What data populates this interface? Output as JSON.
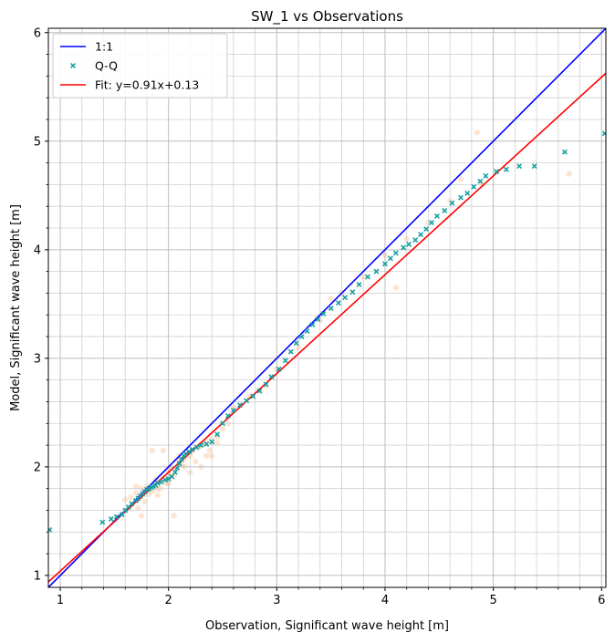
{
  "chart_data": {
    "type": "scatter",
    "title": "SW_1 vs Observations",
    "xlabel": "Observation, Significant wave height [m]",
    "ylabel": "Model, Significant wave height [m]",
    "xlim": [
      0.89,
      6.04
    ],
    "ylim": [
      0.89,
      6.04
    ],
    "x_ticks": [
      1,
      2,
      3,
      4,
      5,
      6
    ],
    "y_ticks": [
      1,
      2,
      3,
      4,
      5,
      6
    ],
    "x_tick_labels": [
      "1",
      "2",
      "3",
      "4",
      "5",
      "6"
    ],
    "y_tick_labels": [
      "1",
      "2",
      "3",
      "4",
      "5",
      "6"
    ],
    "minor_tick_step": 0.2,
    "grid": true,
    "legend_position": "top-left",
    "legend": [
      {
        "label": "1:1",
        "color": "#0000ff",
        "kind": "line"
      },
      {
        "label": "Q-Q",
        "color": "#17a0a0",
        "kind": "marker"
      },
      {
        "label": "Fit: y=0.91x+0.13",
        "color": "#ff0000",
        "kind": "line"
      }
    ],
    "one_to_one_line": {
      "color": "#0000ff"
    },
    "fit_line": {
      "slope": 0.91,
      "intercept": 0.13,
      "color": "#ff0000"
    },
    "qq_series": {
      "color": "#17a0a0",
      "x": [
        0.9,
        1.39,
        1.47,
        1.52,
        1.57,
        1.6,
        1.63,
        1.66,
        1.7,
        1.72,
        1.74,
        1.76,
        1.78,
        1.8,
        1.82,
        1.84,
        1.86,
        1.88,
        1.9,
        1.93,
        1.97,
        2.0,
        2.03,
        2.06,
        2.08,
        2.1,
        2.12,
        2.14,
        2.16,
        2.19,
        2.22,
        2.26,
        2.3,
        2.35,
        2.4,
        2.45,
        2.5,
        2.55,
        2.6,
        2.66,
        2.72,
        2.78,
        2.84,
        2.9,
        2.95,
        3.02,
        3.08,
        3.13,
        3.18,
        3.23,
        3.28,
        3.33,
        3.38,
        3.43,
        3.5,
        3.57,
        3.63,
        3.7,
        3.76,
        3.84,
        3.92,
        4.0,
        4.05,
        4.1,
        4.17,
        4.22,
        4.28,
        4.33,
        4.38,
        4.43,
        4.48,
        4.55,
        4.62,
        4.7,
        4.76,
        4.82,
        4.88,
        4.93,
        5.03,
        5.12,
        5.24,
        5.38,
        5.66,
        6.03
      ],
      "y": [
        1.42,
        1.49,
        1.52,
        1.54,
        1.56,
        1.6,
        1.63,
        1.66,
        1.69,
        1.71,
        1.73,
        1.75,
        1.77,
        1.79,
        1.8,
        1.81,
        1.82,
        1.83,
        1.85,
        1.86,
        1.88,
        1.89,
        1.91,
        1.95,
        1.99,
        2.03,
        2.07,
        2.1,
        2.12,
        2.14,
        2.16,
        2.18,
        2.2,
        2.21,
        2.23,
        2.3,
        2.4,
        2.47,
        2.52,
        2.57,
        2.61,
        2.65,
        2.7,
        2.76,
        2.83,
        2.9,
        2.98,
        3.06,
        3.14,
        3.2,
        3.25,
        3.31,
        3.36,
        3.41,
        3.46,
        3.51,
        3.56,
        3.61,
        3.68,
        3.75,
        3.8,
        3.87,
        3.92,
        3.97,
        4.02,
        4.05,
        4.09,
        4.14,
        4.19,
        4.25,
        4.31,
        4.36,
        4.43,
        4.48,
        4.52,
        4.58,
        4.63,
        4.68,
        4.72,
        4.74,
        4.77,
        4.77,
        4.9,
        5.07
      ]
    },
    "density_points": {
      "color": "#f4a261",
      "x": [
        1.65,
        1.7,
        1.72,
        1.75,
        1.78,
        1.8,
        1.82,
        1.85,
        1.88,
        1.9,
        1.92,
        1.95,
        1.98,
        2.0,
        2.02,
        2.05,
        2.08,
        2.1,
        2.12,
        2.15,
        2.18,
        2.2,
        2.22,
        2.25,
        2.28,
        2.3,
        2.35,
        2.38,
        2.4,
        2.45,
        2.5,
        1.75,
        1.85,
        2.05,
        2.1,
        1.95,
        2.3,
        2.45,
        2.6,
        2.75,
        2.85,
        3.0,
        3.2,
        3.4,
        3.6,
        3.8,
        4.0,
        4.2,
        4.4,
        4.6,
        4.85,
        4.9,
        5.7,
        1.7,
        2.0,
        2.2,
        2.4,
        2.9,
        3.5,
        4.1,
        4.7,
        1.6,
        1.9,
        2.15,
        2.35,
        2.55
      ],
      "y": [
        1.72,
        1.76,
        1.62,
        1.8,
        1.68,
        1.82,
        1.75,
        1.78,
        1.88,
        1.74,
        1.8,
        1.9,
        1.85,
        1.95,
        2.0,
        1.92,
        1.98,
        2.05,
        2.02,
        2.08,
        2.12,
        2.1,
        2.15,
        2.05,
        2.18,
        2.2,
        2.22,
        2.15,
        2.25,
        2.28,
        2.35,
        1.55,
        2.15,
        1.55,
        2.1,
        2.15,
        2.0,
        2.22,
        2.55,
        2.65,
        2.7,
        2.9,
        3.1,
        3.35,
        3.6,
        3.75,
        3.95,
        4.1,
        4.25,
        4.45,
        5.08,
        4.6,
        4.7,
        1.82,
        1.85,
        1.95,
        2.1,
        2.75,
        3.55,
        3.65,
        4.65,
        1.7,
        1.8,
        2.0,
        2.1,
        2.4
      ]
    }
  }
}
